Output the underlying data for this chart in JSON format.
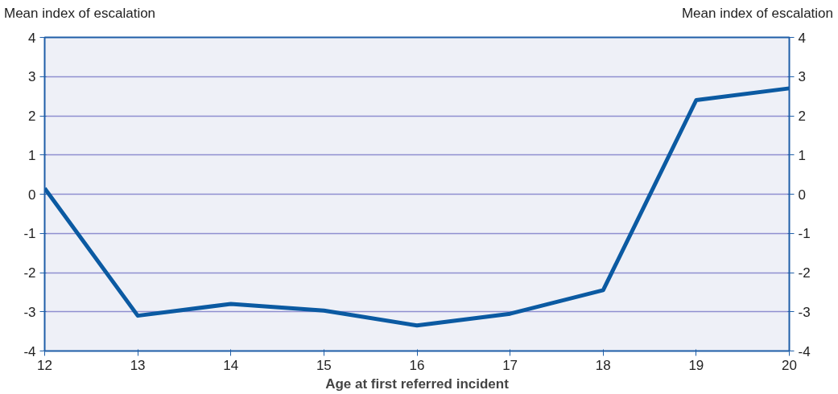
{
  "chart_data": {
    "type": "line",
    "xlabel": "Age at first referred incident",
    "ylabel": "Mean index of escalation",
    "y2label": "Mean index of escalation",
    "x": [
      12,
      13,
      14,
      15,
      16,
      17,
      18,
      19,
      20
    ],
    "series": [
      {
        "color": "#0b5aa2",
        "values": [
          0.15,
          -3.1,
          -2.8,
          -2.97,
          -3.35,
          -3.05,
          -2.45,
          2.4,
          2.7
        ]
      }
    ],
    "xlim": [
      12,
      20
    ],
    "xticks": [
      12,
      13,
      14,
      15,
      16,
      17,
      18,
      19,
      20
    ],
    "ylim": [
      -4,
      4
    ],
    "yticks": [
      -4,
      -3,
      -2,
      -1,
      0,
      1,
      2,
      3,
      4
    ],
    "y2lim": [
      -4,
      4
    ],
    "y2ticks": [
      -4,
      -3,
      -2,
      -1,
      0,
      1,
      2,
      3,
      4
    ],
    "grid": "y",
    "marker": "none",
    "line_style": "solid"
  }
}
